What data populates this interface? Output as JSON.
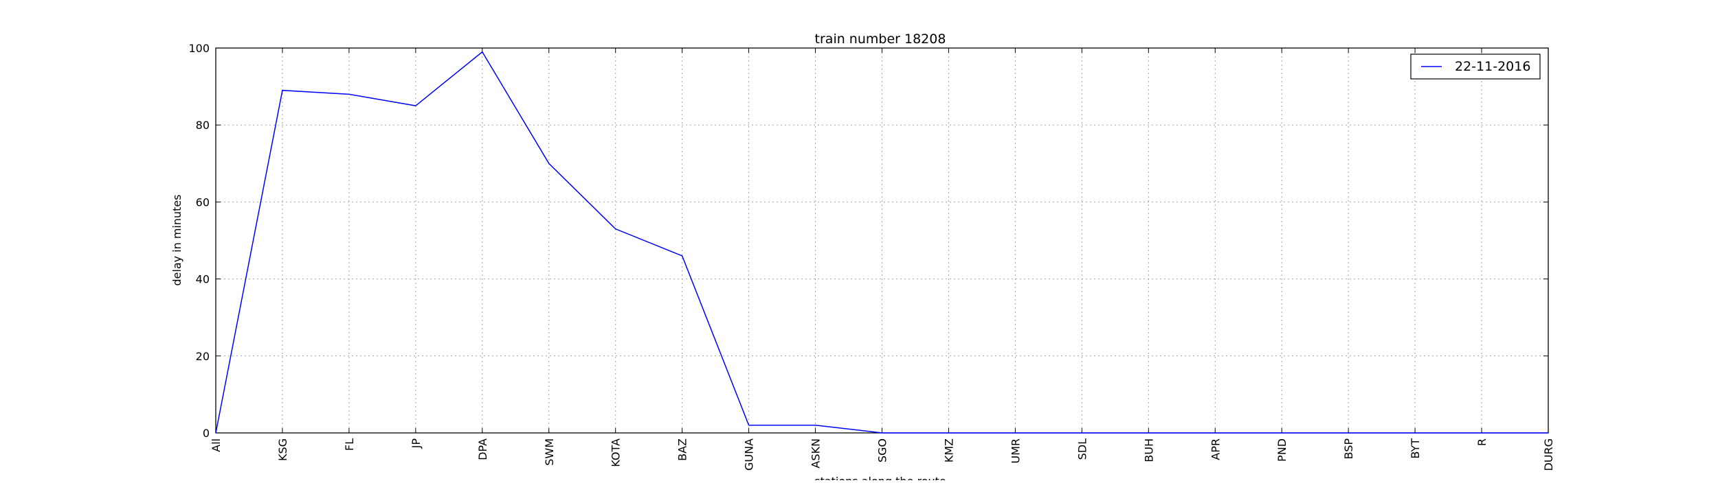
{
  "chart_data": {
    "type": "line",
    "title": "train number 18208",
    "xlabel": "stations along the route",
    "ylabel": "delay in minutes",
    "categories": [
      "All",
      "KSG",
      "FL",
      "JP",
      "DPA",
      "SWM",
      "KOTA",
      "BAZ",
      "GUNA",
      "ASKN",
      "SGO",
      "KMZ",
      "UMR",
      "SDL",
      "BUH",
      "APR",
      "PND",
      "BSP",
      "BYT",
      "R",
      "DURG"
    ],
    "series": [
      {
        "name": "22-11-2016",
        "values": [
          0,
          89,
          88,
          85,
          99,
          70,
          53,
          46,
          2,
          2,
          0,
          0,
          0,
          0,
          0,
          0,
          0,
          0,
          0,
          0,
          0
        ],
        "color": "#0000ff"
      }
    ],
    "ylim": [
      0,
      100
    ],
    "yticks": [
      "0",
      "20",
      "40",
      "60",
      "80",
      "100"
    ],
    "grid": true,
    "legend_position": "top-right"
  }
}
